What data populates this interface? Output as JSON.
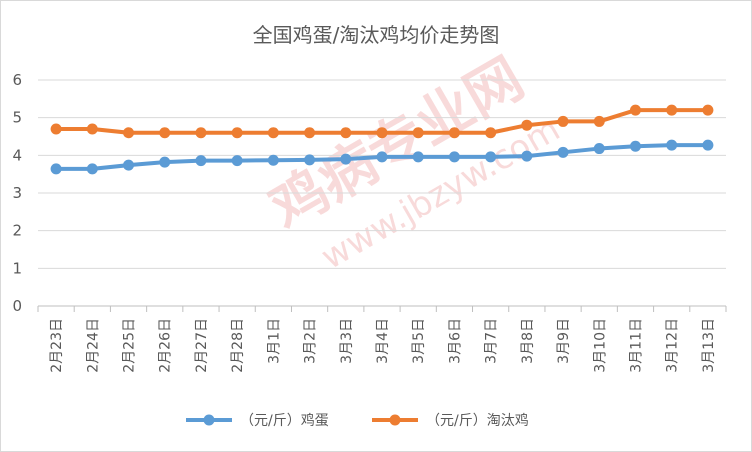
{
  "chart_data": {
    "type": "line",
    "title": "全国鸡蛋/淘汰鸡均价走势图",
    "xlabel": "",
    "ylabel": "",
    "categories": [
      "2月23日",
      "2月24日",
      "2月25日",
      "2月26日",
      "2月27日",
      "2月28日",
      "3月1日",
      "3月2日",
      "3月3日",
      "3月4日",
      "3月5日",
      "3月6日",
      "3月7日",
      "3月8日",
      "3月9日",
      "3月10日",
      "3月11日",
      "3月12日",
      "3月13日"
    ],
    "y_ticks": [
      "0",
      "1",
      "2",
      "3",
      "4",
      "5",
      "6"
    ],
    "ylim": [
      0,
      6
    ],
    "grid": true,
    "legend_position": "bottom",
    "series": [
      {
        "name": "（元/斤）鸡蛋",
        "color": "#5B9BD5",
        "values": [
          3.64,
          3.64,
          3.74,
          3.82,
          3.86,
          3.86,
          3.87,
          3.88,
          3.9,
          3.96,
          3.96,
          3.96,
          3.96,
          3.98,
          4.08,
          4.18,
          4.24,
          4.27,
          4.27
        ]
      },
      {
        "name": "（元/斤）淘汰鸡",
        "color": "#ED7D31",
        "values": [
          4.7,
          4.7,
          4.6,
          4.6,
          4.6,
          4.6,
          4.6,
          4.6,
          4.6,
          4.6,
          4.6,
          4.6,
          4.6,
          4.8,
          4.9,
          4.9,
          5.2,
          5.2,
          5.2
        ]
      }
    ]
  },
  "watermark": {
    "text_1": "鸡病专业网",
    "text_2": "www.jbzyw.com",
    "color": "#e6a0a0"
  }
}
